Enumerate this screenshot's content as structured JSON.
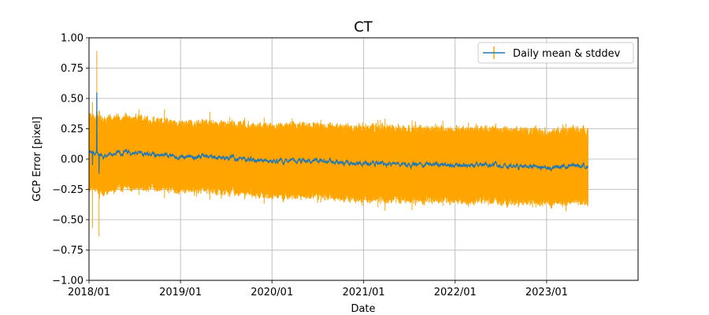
{
  "chart_data": {
    "type": "line",
    "title": "CT",
    "xlabel": "Date",
    "ylabel": "GCP Error [pixel]",
    "xlim": [
      "2018-01-01",
      "2024-01-01"
    ],
    "ylim": [
      -1.0,
      1.0
    ],
    "x_ticks": [
      "2018/01",
      "2019/01",
      "2020/01",
      "2021/01",
      "2022/01",
      "2023/01"
    ],
    "y_ticks": [
      "1.00",
      "0.75",
      "0.50",
      "0.25",
      "0.00",
      "−0.25",
      "−0.50",
      "−0.75",
      "−1.00"
    ],
    "y_tick_values": [
      1.0,
      0.75,
      0.5,
      0.25,
      0.0,
      -0.25,
      -0.5,
      -0.75,
      -1.0
    ],
    "grid": true,
    "legend_position": "top-right",
    "series": [
      {
        "name": "Daily mean & stddev",
        "kind": "errorbar",
        "line_color": "#1f77b4",
        "errorbar_color": "#ffa500",
        "x_start": "2018-01-01",
        "x_end": "2023-06-15",
        "mean_trend": [
          [
            "2018-01-01",
            0.05
          ],
          [
            "2018-03-01",
            0.03
          ],
          [
            "2018-06-01",
            0.06
          ],
          [
            "2019-01-01",
            0.02
          ],
          [
            "2019-06-01",
            0.02
          ],
          [
            "2020-01-01",
            -0.02
          ],
          [
            "2020-06-01",
            -0.02
          ],
          [
            "2021-01-01",
            -0.03
          ],
          [
            "2021-06-01",
            -0.04
          ],
          [
            "2022-01-01",
            -0.05
          ],
          [
            "2022-06-01",
            -0.05
          ],
          [
            "2023-01-01",
            -0.07
          ],
          [
            "2023-06-15",
            -0.05
          ]
        ],
        "stddev_trend": [
          [
            "2018-01-01",
            0.3
          ],
          [
            "2018-06-01",
            0.28
          ],
          [
            "2019-01-01",
            0.27
          ],
          [
            "2020-01-01",
            0.28
          ],
          [
            "2021-01-01",
            0.29
          ],
          [
            "2022-01-01",
            0.29
          ],
          [
            "2023-01-01",
            0.29
          ],
          [
            "2023-06-15",
            0.29
          ]
        ],
        "notable_points": [
          {
            "x": "2018-01-15",
            "mean": -0.05,
            "stddev": 0.52
          },
          {
            "x": "2018-02-01",
            "mean": 0.55,
            "stddev": 0.34
          },
          {
            "x": "2018-02-10",
            "mean": -0.12,
            "stddev": 0.52
          }
        ]
      }
    ]
  }
}
